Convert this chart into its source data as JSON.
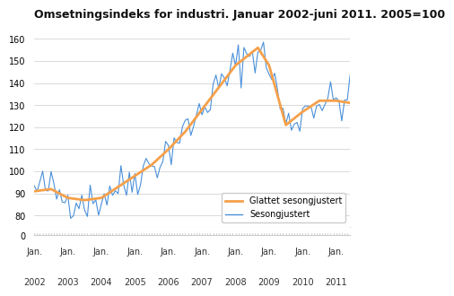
{
  "title": "Omsetningsindeks for industri. Januar 2002-juni 2011. 2005=100",
  "title_fontsize": 9,
  "ylim_main": [
    75,
    162
  ],
  "yticks_main": [
    80,
    90,
    100,
    110,
    120,
    130,
    140,
    150,
    160
  ],
  "line_color_smooth": "#F5A04A",
  "line_color_seasonal": "#4A90D9",
  "legend_labels": [
    "Glattet sesongjustert",
    "Sesongjustert"
  ],
  "background_color": "#ffffff",
  "grid_color": "#cccccc",
  "smooth_keypoints_x": [
    0,
    6,
    12,
    18,
    24,
    30,
    36,
    42,
    48,
    54,
    60,
    66,
    72,
    78,
    80,
    84,
    90,
    96,
    102,
    108,
    113
  ],
  "smooth_keypoints_y": [
    91,
    92,
    88,
    87,
    88,
    93,
    98,
    103,
    110,
    118,
    128,
    138,
    148,
    154,
    156,
    148,
    121,
    127,
    132,
    132,
    131
  ],
  "noise_scale": 5.0,
  "noise_seed": 42
}
